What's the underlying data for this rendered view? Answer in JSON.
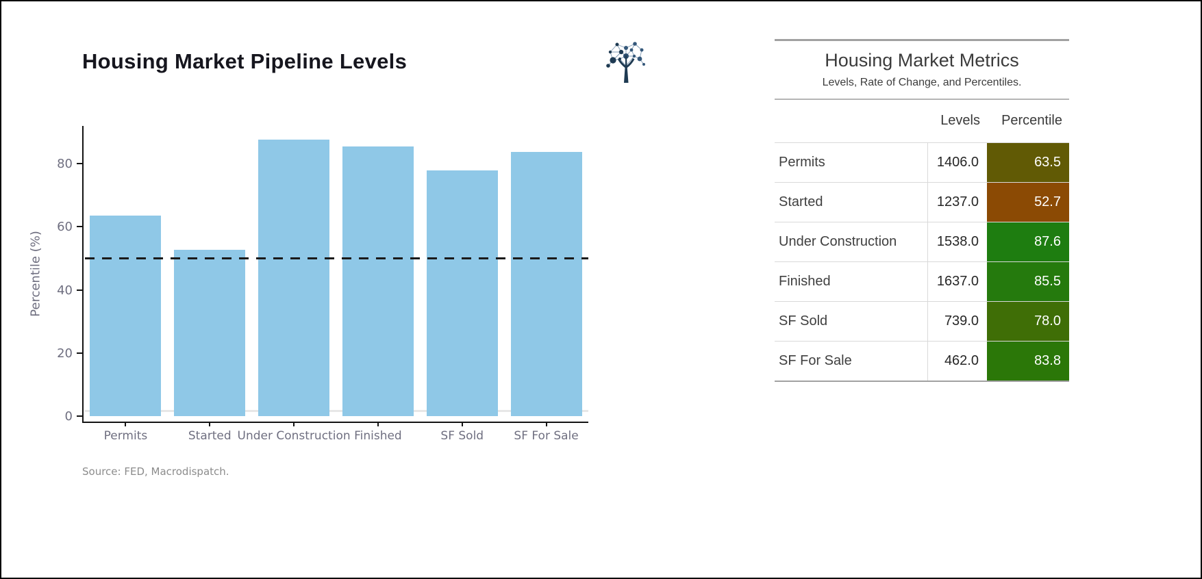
{
  "page": {
    "background": "#ffffff",
    "border_color": "#000000"
  },
  "chart": {
    "title": "Housing Market Pipeline Levels",
    "source": "Source: FED, Macrodispatch.",
    "logo": "network-tree-logo",
    "colors": {
      "bar": "#8FC8E7",
      "axis": "#131313",
      "tick_label": "#6F6F80",
      "dashed_line": "#1A1A1A",
      "zero_line": "#E7E7E7",
      "title": "#16161E",
      "source_text": "#8C8C8C"
    }
  },
  "chart_data": {
    "type": "bar",
    "title": "Housing Market Pipeline Levels",
    "categories": [
      "Permits",
      "Started",
      "Under Construction",
      "Finished",
      "SF Sold",
      "SF For Sale"
    ],
    "values": [
      63.5,
      52.7,
      87.6,
      85.5,
      78.0,
      83.8
    ],
    "xlabel": "",
    "ylabel": "Percentile (%)",
    "ylim": [
      0,
      92
    ],
    "yticks": [
      0,
      20,
      40,
      60,
      80
    ],
    "grid": false,
    "legend": null,
    "bar_color": "#8FC8E7",
    "reference_line": {
      "y": 50,
      "style": "dashed",
      "color": "#1A1A1A"
    },
    "source": "Source: FED, Macrodispatch."
  },
  "table": {
    "title": "Housing Market Metrics",
    "subtitle": "Levels, Rate of Change, and Percentiles.",
    "headers": {
      "levels": "Levels",
      "percentile": "Percentile"
    },
    "rows": [
      {
        "label": "Permits",
        "level": "1406.0",
        "percentile": "63.5",
        "color": "#615A05"
      },
      {
        "label": "Started",
        "level": "1237.0",
        "percentile": "52.7",
        "color": "#8B4A04"
      },
      {
        "label": "Under Construction",
        "level": "1538.0",
        "percentile": "87.6",
        "color": "#1E7D10"
      },
      {
        "label": "Finished",
        "level": "1637.0",
        "percentile": "85.5",
        "color": "#257A0D"
      },
      {
        "label": "SF Sold",
        "level": "739.0",
        "percentile": "78.0",
        "color": "#3F6E06"
      },
      {
        "label": "SF For Sale",
        "level": "462.0",
        "percentile": "83.8",
        "color": "#2B7708"
      }
    ]
  }
}
